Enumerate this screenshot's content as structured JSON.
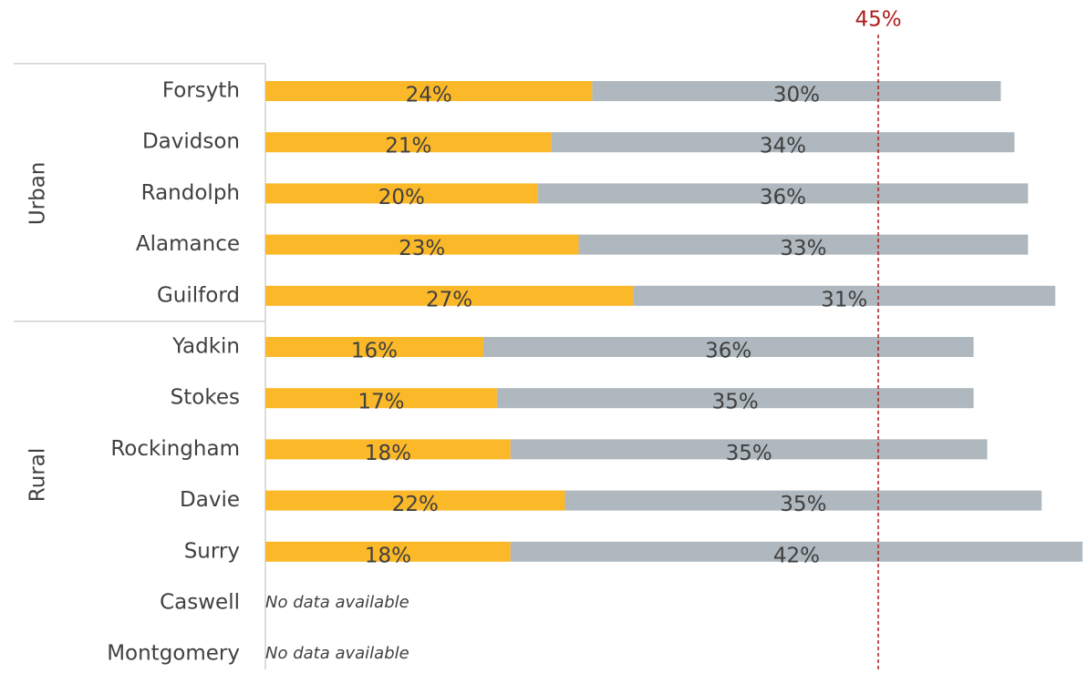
{
  "chart_data": {
    "type": "bar",
    "orientation": "horizontal",
    "stacked": true,
    "categories": [
      "Forsyth",
      "Davidson",
      "Randolph",
      "Alamance",
      "Guilford",
      "Yadkin",
      "Stokes",
      "Rockingham",
      "Davie",
      "Surry",
      "Caswell",
      "Montgomery"
    ],
    "series": [
      {
        "color": "#fbb829",
        "values": [
          24,
          21,
          20,
          23,
          27,
          16,
          17,
          18,
          22,
          18,
          null,
          null
        ],
        "value_labels": [
          "24%",
          "21%",
          "20%",
          "23%",
          "27%",
          "16%",
          "17%",
          "18%",
          "22%",
          "18%",
          null,
          null
        ]
      },
      {
        "color": "#aeb8be",
        "values": [
          30,
          34,
          36,
          33,
          31,
          36,
          35,
          35,
          35,
          42,
          null,
          null
        ],
        "value_labels": [
          "30%",
          "34%",
          "36%",
          "33%",
          "31%",
          "36%",
          "35%",
          "35%",
          "35%",
          "42%",
          null,
          null
        ]
      }
    ],
    "notes": [
      "No data available",
      "No data available"
    ],
    "groups": [
      {
        "label": "Urban",
        "count": 5
      },
      {
        "label": "Rural",
        "count": 7
      }
    ],
    "reference_line": {
      "value": 45,
      "label": "45%",
      "color": "#b01c1c"
    },
    "xlim": [
      0,
      60
    ]
  }
}
